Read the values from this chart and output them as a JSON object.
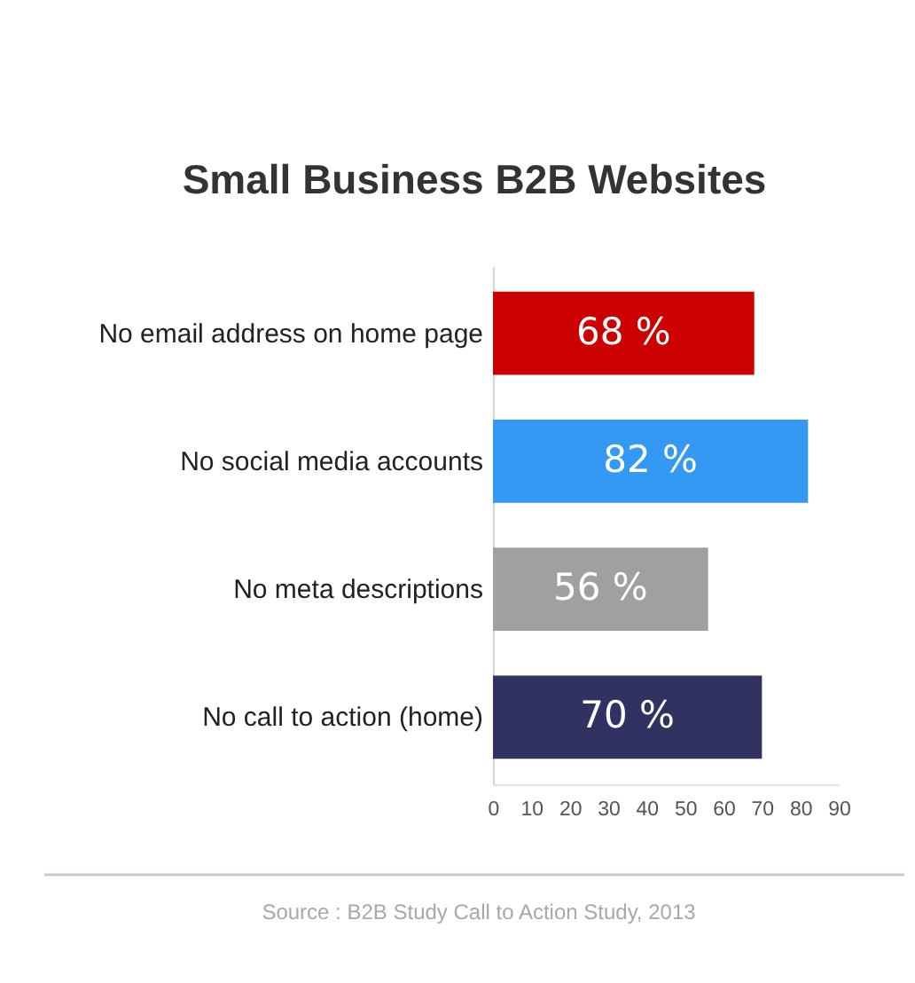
{
  "chart_data": {
    "type": "bar",
    "orientation": "horizontal",
    "title": "Small Business B2B  Websites",
    "categories": [
      "No email address on home page",
      "No social media accounts",
      "No meta descriptions",
      "No call to action (home)"
    ],
    "values": [
      68,
      82,
      56,
      70
    ],
    "colors": [
      "#cc0000",
      "#3399f3",
      "#a0a0a0",
      "#323262"
    ],
    "value_labels": [
      "68 %",
      "82 %",
      "56 %",
      "70 %"
    ],
    "xlim": [
      0,
      90
    ],
    "xticks": [
      0,
      10,
      20,
      30,
      40,
      50,
      60,
      70,
      80,
      90
    ],
    "grid": false,
    "legend": false,
    "annotations": [
      "Source : B2B Study Call to Action Study, 2013"
    ]
  }
}
